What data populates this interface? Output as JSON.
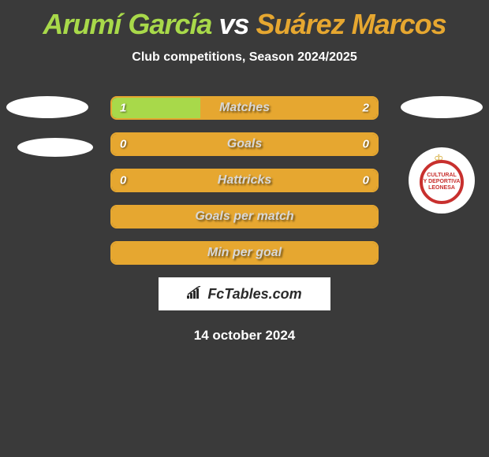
{
  "title": {
    "player1": "Arumí García",
    "vs": "vs",
    "player2": "Suárez Marcos"
  },
  "subtitle": "Club competitions, Season 2024/2025",
  "colors": {
    "player1": "#a8d94a",
    "player2": "#e6a730",
    "background": "#3a3a3a",
    "label_text": "#d8d8d8"
  },
  "bars": [
    {
      "label": "Matches",
      "left_value": "1",
      "right_value": "2",
      "left_pct": 33.3,
      "right_pct": 66.7,
      "left_fill": "#a8d94a",
      "right_fill": "#e6a730",
      "border_color": "#e6a730"
    },
    {
      "label": "Goals",
      "left_value": "0",
      "right_value": "0",
      "left_pct": 0,
      "right_pct": 100,
      "left_fill": "#a8d94a",
      "right_fill": "#e6a730",
      "border_color": "#e6a730"
    },
    {
      "label": "Hattricks",
      "left_value": "0",
      "right_value": "0",
      "left_pct": 0,
      "right_pct": 100,
      "left_fill": "#a8d94a",
      "right_fill": "#e6a730",
      "border_color": "#e6a730"
    },
    {
      "label": "Goals per match",
      "left_value": "",
      "right_value": "",
      "left_pct": 0,
      "right_pct": 100,
      "left_fill": "#a8d94a",
      "right_fill": "#e6a730",
      "border_color": "#e6a730"
    },
    {
      "label": "Min per goal",
      "left_value": "",
      "right_value": "",
      "left_pct": 0,
      "right_pct": 100,
      "left_fill": "#a8d94a",
      "right_fill": "#e6a730",
      "border_color": "#e6a730"
    }
  ],
  "club": {
    "crest_text": "CULTURAL Y DEPORTIVA LEONESA",
    "crest_border_color": "#c8302e"
  },
  "footer": {
    "logo_text": "FcTables.com",
    "date": "14 october 2024"
  }
}
